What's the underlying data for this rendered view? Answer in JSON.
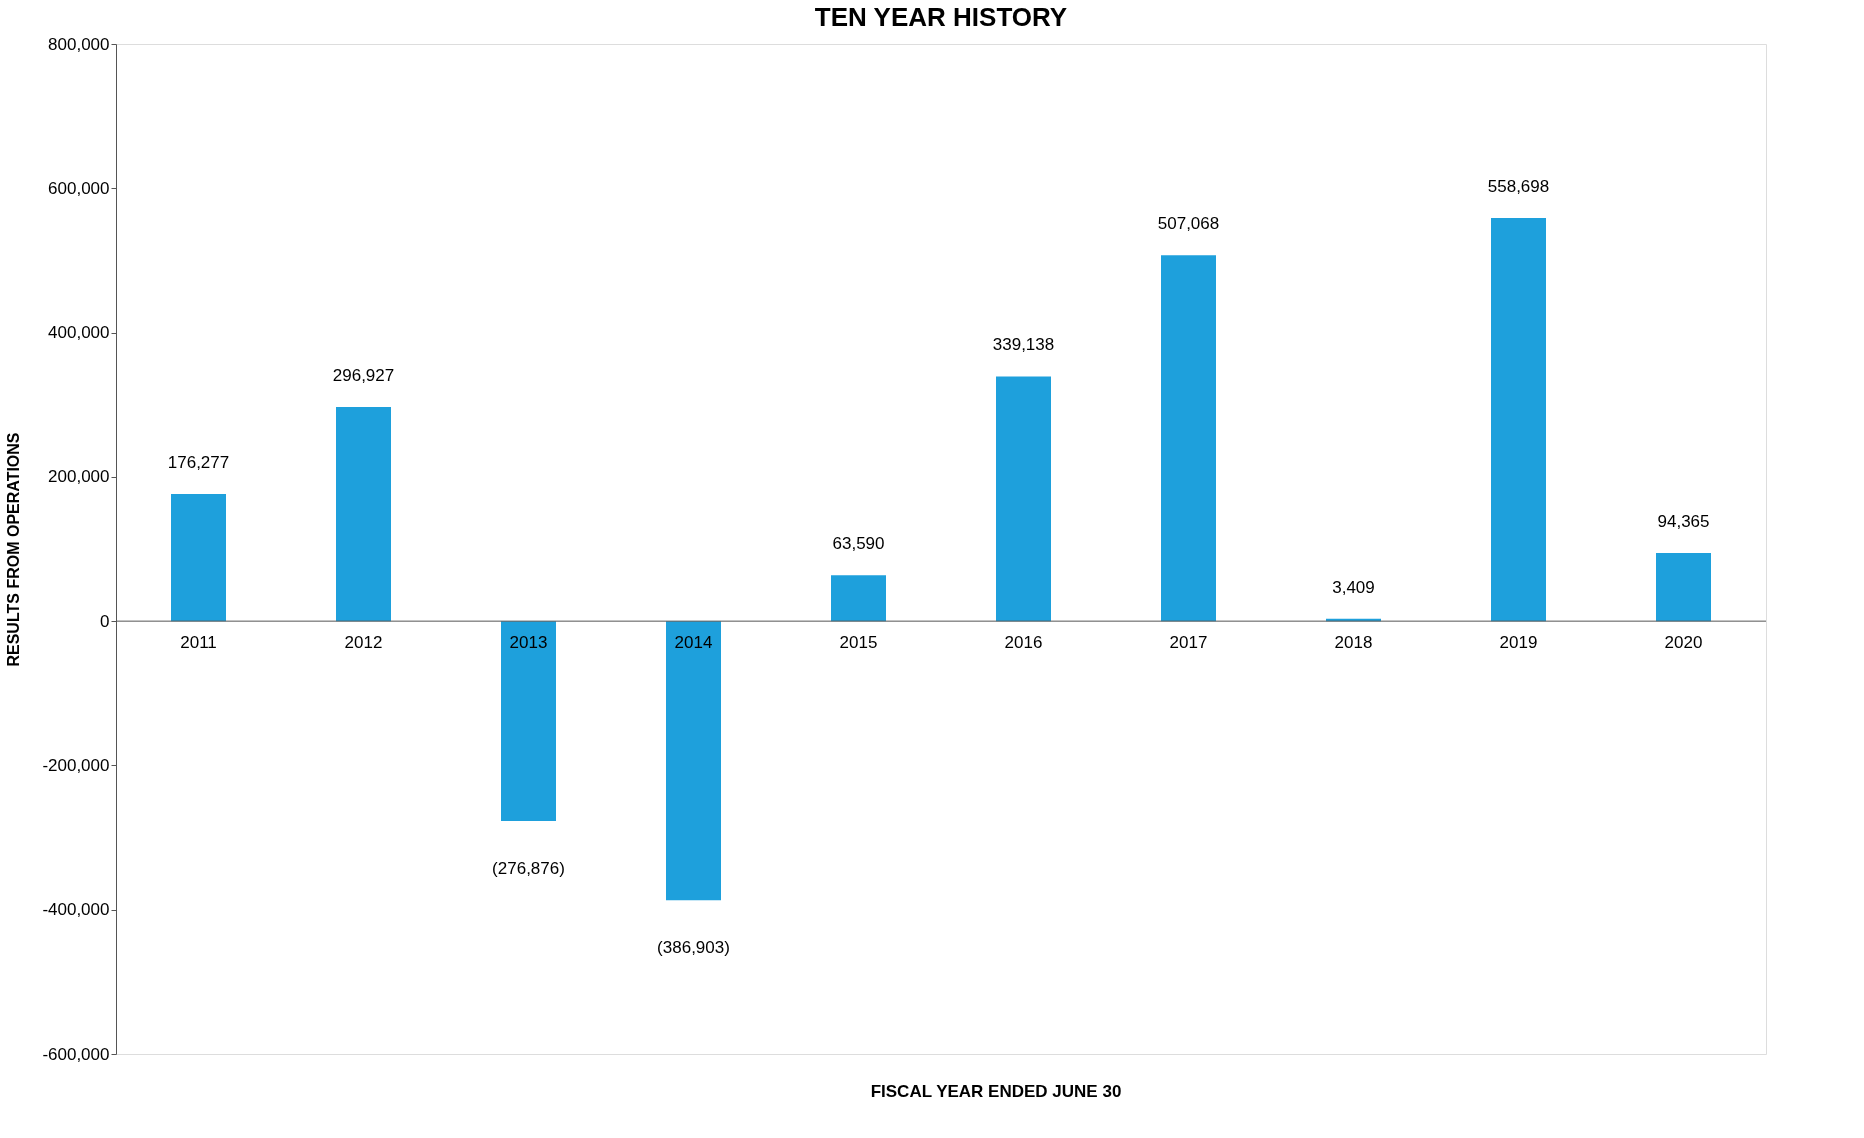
{
  "chart_data": {
    "type": "bar",
    "title": "TEN YEAR HISTORY",
    "xlabel": "FISCAL YEAR ENDED JUNE 30",
    "ylabel": "RESULTS FROM OPERATIONS",
    "categories": [
      "2011",
      "2012",
      "2013",
      "2014",
      "2015",
      "2016",
      "2017",
      "2018",
      "2019",
      "2020"
    ],
    "values": [
      176277,
      296927,
      -276876,
      -386903,
      63590,
      339138,
      507068,
      3409,
      558698,
      94365
    ],
    "value_labels": [
      "176,277",
      "296,927",
      "(276,876)",
      "(386,903)",
      "63,590",
      "339,138",
      "507,068",
      "3,409",
      "558,698",
      "94,365"
    ],
    "color": "#1ea0dc",
    "ylim": [
      -600000,
      800000
    ],
    "yticks": [
      {
        "value": -600000,
        "label": "-600,000"
      },
      {
        "value": -400000,
        "label": "-400,000"
      },
      {
        "value": -200000,
        "label": "-200,000"
      },
      0,
      {
        "value": 200000,
        "label": "200,000"
      },
      {
        "value": 400000,
        "label": "400,000"
      },
      {
        "value": 600000,
        "label": "600,000"
      },
      {
        "value": 800000,
        "label": "800,000"
      }
    ],
    "grid": false
  }
}
